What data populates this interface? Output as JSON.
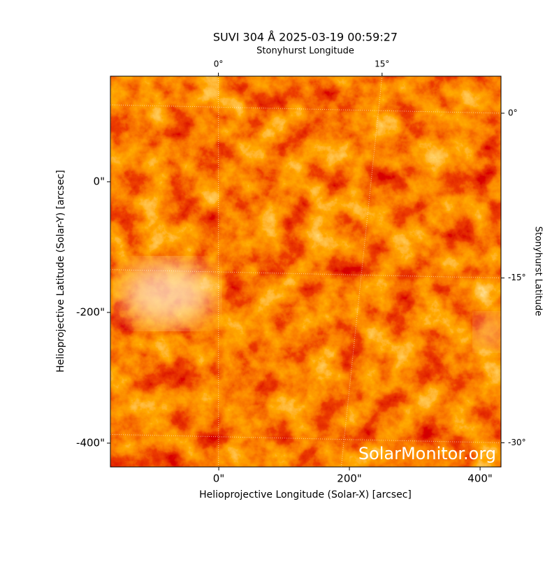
{
  "chart_data": {
    "type": "image",
    "title": "SUVI 304 Å 2025-03-19 00:59:27",
    "xlabel": "Helioprojective Longitude (Solar-X) [arcsec]",
    "ylabel": "Helioprojective Latitude (Solar-Y) [arcsec]",
    "x2label": "Stonyhurst Longitude",
    "y2label": "Stonyhurst Latitude",
    "xlim": [
      -165.8,
      432
    ],
    "ylim": [
      -436.4,
      161.5
    ],
    "xticks": [
      {
        "value": 0,
        "label": "0\""
      },
      {
        "value": 200,
        "label": "200\""
      },
      {
        "value": 400,
        "label": "400\""
      }
    ],
    "yticks": [
      {
        "value": 0,
        "label": "0\""
      },
      {
        "value": -200,
        "label": "-200\""
      },
      {
        "value": -400,
        "label": "-400\""
      }
    ],
    "x2lim": [
      -9.9,
      25.9
    ],
    "y2lim": [
      -32.2,
      3.37
    ],
    "x2ticks": [
      {
        "value": 0,
        "label": "0°"
      },
      {
        "value": 15,
        "label": "15°"
      }
    ],
    "y2ticks": [
      {
        "value": 0,
        "label": "0°"
      },
      {
        "value": -15,
        "label": "-15°"
      },
      {
        "value": -30,
        "label": "-30°"
      }
    ],
    "annotation": "SolarMonitor.org",
    "grid": true
  }
}
